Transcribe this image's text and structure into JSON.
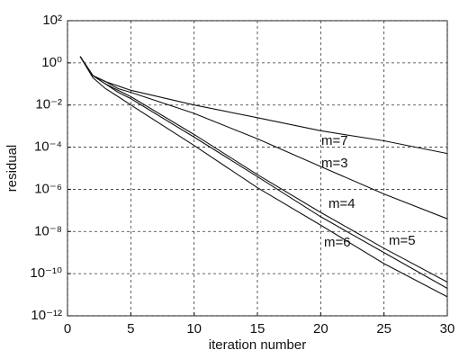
{
  "chart_data": {
    "type": "line",
    "x_label": "iteration number",
    "y_label": "residual",
    "x": [
      1,
      2,
      3,
      4,
      5,
      10,
      15,
      20,
      25,
      30
    ],
    "series": [
      {
        "name": "m=7",
        "color": "#111111",
        "values": [
          2,
          0.25,
          0.13,
          0.08,
          0.05,
          0.01,
          0.0025,
          0.0006,
          0.0002,
          5e-05
        ]
      },
      {
        "name": "m=3",
        "color": "#111111",
        "values": [
          2,
          0.25,
          0.13,
          0.06,
          0.04,
          0.004,
          0.00025,
          1.2e-05,
          6e-07,
          4e-08
        ]
      },
      {
        "name": "m=4",
        "color": "#111111",
        "values": [
          2,
          0.25,
          0.1,
          0.05,
          0.025,
          0.0004,
          5e-06,
          8e-08,
          1.6e-09,
          4e-11
        ]
      },
      {
        "name": "m=6",
        "color": "#111111",
        "values": [
          2,
          0.2,
          0.06,
          0.025,
          0.01,
          0.00012,
          1.2e-06,
          2e-08,
          3e-10,
          8e-12
        ]
      },
      {
        "name": "m=5",
        "color": "#111111",
        "values": [
          2,
          0.25,
          0.1,
          0.04,
          0.02,
          0.0003,
          4e-06,
          5e-08,
          1e-09,
          2e-11
        ]
      }
    ],
    "xlim": [
      0,
      30
    ],
    "xticks": [
      0,
      5,
      10,
      15,
      20,
      25,
      30
    ],
    "ylim": [
      1e-12,
      100
    ],
    "y_scale": "log",
    "yticks": [
      {
        "value": 100,
        "label": "10²"
      },
      {
        "value": 1,
        "label": "10⁰"
      },
      {
        "value": 0.01,
        "label": "10⁻²"
      },
      {
        "value": 0.0001,
        "label": "10⁻⁴"
      },
      {
        "value": 1e-06,
        "label": "10⁻⁶"
      },
      {
        "value": 1e-08,
        "label": "10⁻⁸"
      },
      {
        "value": 1e-10,
        "label": "10⁻¹⁰"
      },
      {
        "value": 1e-12,
        "label": "10⁻¹²"
      }
    ],
    "grid": true
  }
}
